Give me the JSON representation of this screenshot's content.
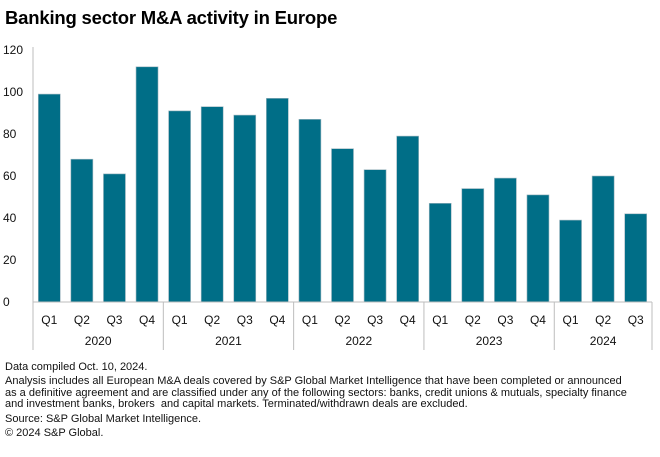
{
  "chart_data": {
    "type": "bar",
    "title": "Banking sector M&A activity in Europe",
    "xlabel": "",
    "ylabel": "",
    "ylim": [
      0,
      120
    ],
    "yticks": [
      0,
      20,
      40,
      60,
      80,
      100,
      120
    ],
    "grid": false,
    "legend": "none",
    "bar_color": "#006e87",
    "groups": [
      {
        "label": "2020",
        "quarters": [
          "Q1",
          "Q2",
          "Q3",
          "Q4"
        ]
      },
      {
        "label": "2021",
        "quarters": [
          "Q1",
          "Q2",
          "Q3",
          "Q4"
        ]
      },
      {
        "label": "2022",
        "quarters": [
          "Q1",
          "Q2",
          "Q3",
          "Q4"
        ]
      },
      {
        "label": "2023",
        "quarters": [
          "Q1",
          "Q2",
          "Q3",
          "Q4"
        ]
      },
      {
        "label": "2024",
        "quarters": [
          "Q1",
          "Q2",
          "Q3"
        ]
      }
    ],
    "categories": [
      "2020 Q1",
      "2020 Q2",
      "2020 Q3",
      "2020 Q4",
      "2021 Q1",
      "2021 Q2",
      "2021 Q3",
      "2021 Q4",
      "2022 Q1",
      "2022 Q2",
      "2022 Q3",
      "2022 Q4",
      "2023 Q1",
      "2023 Q2",
      "2023 Q3",
      "2023 Q4",
      "2024 Q1",
      "2024 Q2",
      "2024 Q3"
    ],
    "values": [
      99,
      68,
      61,
      112,
      91,
      93,
      89,
      97,
      87,
      73,
      63,
      79,
      47,
      54,
      59,
      51,
      39,
      60,
      42
    ]
  },
  "footnotes": {
    "compiled": "Data compiled Oct. 10, 2024.",
    "analysis_line1": "Analysis includes all European M&A deals covered by S&P Global Market Intelligence that have been completed or announced",
    "analysis_line2": "as a definitive agreement and are classified under any of the following sectors: banks, credit unions & mutuals, specialty finance",
    "analysis_line3": "and investment banks, brokers  and capital markets. Terminated/withdrawn deals are excluded.",
    "source": "Source: S&P Global Market Intelligence.",
    "copyright": "© 2024 S&P Global."
  }
}
